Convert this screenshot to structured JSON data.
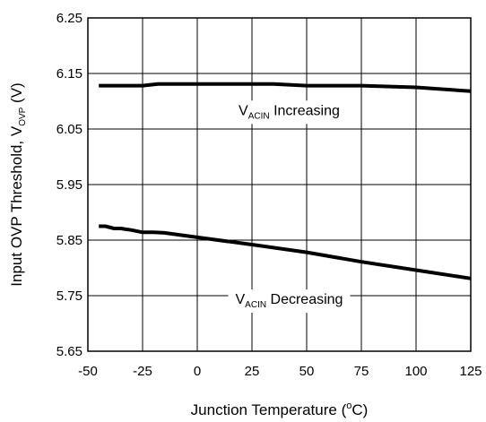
{
  "chart_data": {
    "type": "line",
    "xlabel": {
      "prefix": "Junction Temperature (",
      "sup": "o",
      "suffix": "C)"
    },
    "ylabel": {
      "prefix": "Input OVP Threshold, V",
      "sub": "OVP",
      "suffix": " (V)"
    },
    "xlim": [
      -50,
      125
    ],
    "ylim": [
      5.65,
      6.25
    ],
    "x_ticks": [
      -50,
      -25,
      0,
      25,
      50,
      75,
      100,
      125
    ],
    "x_tick_labels": [
      "-50",
      "-25",
      "0",
      "25",
      "50",
      "75",
      "100",
      "125"
    ],
    "y_ticks": [
      5.65,
      5.75,
      5.85,
      5.95,
      6.05,
      6.15,
      6.25
    ],
    "y_tick_labels": [
      "5.65",
      "5.75",
      "5.85",
      "5.95",
      "6.05",
      "6.15",
      "6.25"
    ],
    "grid": true,
    "series": [
      {
        "x": [
          -45,
          -25,
          -18,
          0,
          35,
          50,
          75,
          100,
          125
        ],
        "y": [
          6.128,
          6.128,
          6.131,
          6.131,
          6.131,
          6.128,
          6.128,
          6.125,
          6.118
        ]
      },
      {
        "x": [
          -45,
          -42,
          -38,
          -35,
          -30,
          -25,
          -20,
          -15,
          0,
          25,
          50,
          75,
          100,
          125
        ],
        "y": [
          5.875,
          5.875,
          5.871,
          5.871,
          5.868,
          5.864,
          5.864,
          5.863,
          5.855,
          5.842,
          5.828,
          5.811,
          5.796,
          5.781
        ]
      }
    ],
    "annotations": [
      {
        "main": "V",
        "sub": "ACIN",
        "rest": " Increasing",
        "x": 42,
        "y": 6.085
      },
      {
        "main": "V",
        "sub": "ACIN",
        "rest": " Decreasing",
        "x": 42,
        "y": 5.745
      }
    ]
  }
}
